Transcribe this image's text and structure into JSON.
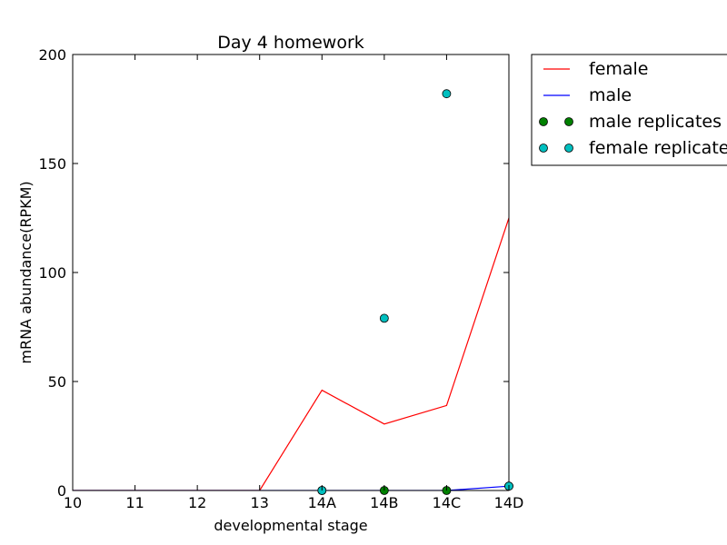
{
  "chart_data": {
    "type": "line",
    "title": "Day 4 homework",
    "xlabel": "developmental stage",
    "ylabel": "mRNA abundance(RPKM)",
    "categories": [
      "10",
      "11",
      "12",
      "13",
      "14A",
      "14B",
      "14C",
      "14D"
    ],
    "ylim": [
      0,
      200
    ],
    "yticks": [
      0,
      50,
      100,
      150,
      200
    ],
    "grid": false,
    "legend_position": "outside-top-right",
    "series": [
      {
        "name": "female",
        "kind": "line",
        "color": "#ff0000",
        "values": [
          0,
          0,
          0,
          0,
          46,
          30.5,
          39,
          125
        ]
      },
      {
        "name": "male",
        "kind": "line",
        "color": "#0000ff",
        "values": [
          0,
          0,
          0,
          0,
          0,
          0,
          0,
          2
        ]
      },
      {
        "name": "male replicates",
        "kind": "scatter",
        "color": "#008000",
        "points": [
          {
            "x": "14A",
            "y": 0
          },
          {
            "x": "14B",
            "y": 0
          },
          {
            "x": "14C",
            "y": 0
          },
          {
            "x": "14D",
            "y": 2
          }
        ]
      },
      {
        "name": "female replicates",
        "kind": "scatter",
        "color": "#00bfbf",
        "points": [
          {
            "x": "14A",
            "y": 0
          },
          {
            "x": "14B",
            "y": 79
          },
          {
            "x": "14C",
            "y": 182
          },
          {
            "x": "14D",
            "y": 2
          }
        ]
      }
    ],
    "legend_entries": [
      "female",
      "male",
      "male replicates",
      "female replicates"
    ]
  }
}
